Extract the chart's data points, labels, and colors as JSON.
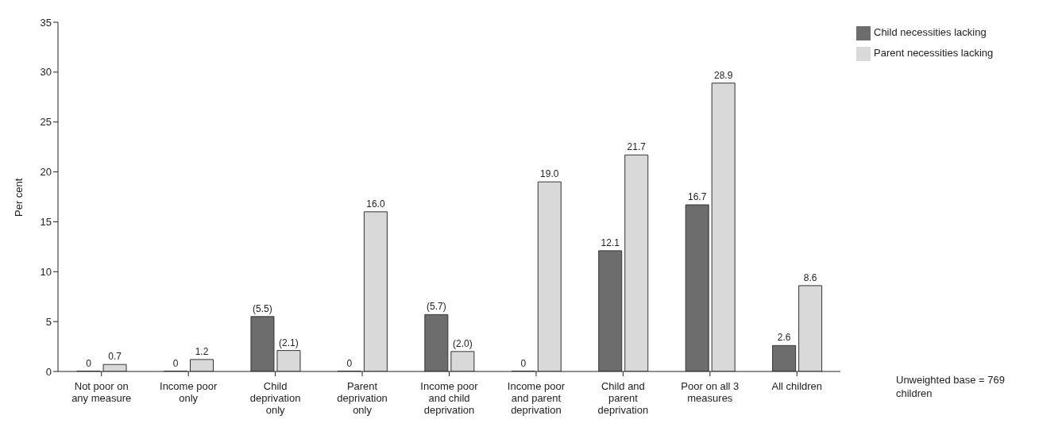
{
  "chart_data": {
    "type": "bar",
    "ylabel": "Per cent",
    "categories": [
      "Not poor on any measure",
      "Income poor only",
      "Child deprivation only",
      "Parent deprivation only",
      "Income poor and child deprivation",
      "Income poor and parent deprivation",
      "Child and parent deprivation",
      "Poor on all 3 measures",
      "All children"
    ],
    "series": [
      {
        "name": "Child necessities lacking",
        "color": "#6d6d6d",
        "values": [
          0,
          0,
          5.5,
          0,
          5.7,
          0,
          12.1,
          16.7,
          2.6
        ],
        "value_labels": [
          "0",
          "0",
          "(5.5)",
          "0",
          "(5.7)",
          "0",
          "12.1",
          "16.7",
          "2.6"
        ]
      },
      {
        "name": "Parent necessities lacking",
        "color": "#d9d9d9",
        "values": [
          0.7,
          1.2,
          2.1,
          16.0,
          2.0,
          19.0,
          21.7,
          28.9,
          8.6
        ],
        "value_labels": [
          "0.7",
          "1.2",
          "(2.1)",
          "16.0",
          "(2.0)",
          "19.0",
          "21.7",
          "28.9",
          "8.6"
        ]
      }
    ],
    "ylim": [
      0,
      35
    ],
    "yticks": [
      0,
      5,
      10,
      15,
      20,
      25,
      30,
      35
    ],
    "grid": false,
    "legend": "top right",
    "annotations": [
      "Unweighted base = 769 children"
    ]
  }
}
